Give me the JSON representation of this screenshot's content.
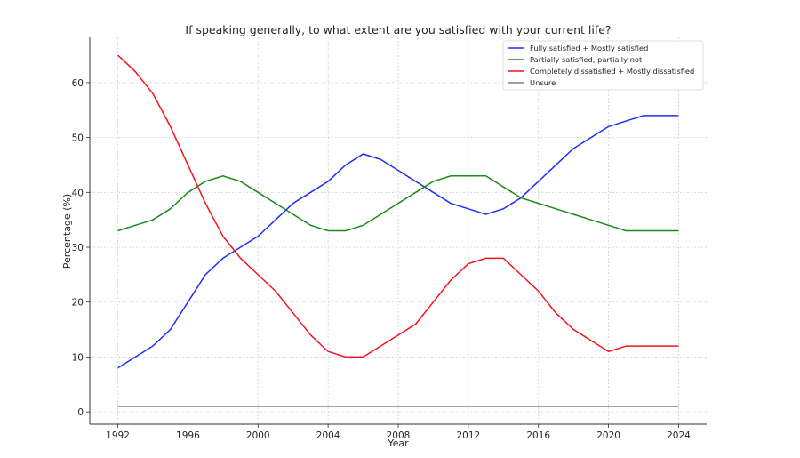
{
  "chart_data": {
    "type": "line",
    "title": "If speaking generally, to what extent are you satisfied with your current life?",
    "xlabel": "Year",
    "ylabel": "Percentage (%)",
    "xlim": [
      1990.4,
      2025.6
    ],
    "ylim": [
      -2.25,
      68.25
    ],
    "xticks": [
      1992,
      1996,
      2000,
      2004,
      2008,
      2012,
      2016,
      2020,
      2024
    ],
    "yticks": [
      0,
      10,
      20,
      30,
      40,
      50,
      60
    ],
    "grid": true,
    "legend_position": "top-right",
    "x": [
      1992,
      1993,
      1994,
      1995,
      1996,
      1997,
      1998,
      1999,
      2000,
      2001,
      2002,
      2003,
      2004,
      2005,
      2006,
      2007,
      2008,
      2009,
      2010,
      2011,
      2012,
      2013,
      2014,
      2015,
      2016,
      2017,
      2018,
      2019,
      2020,
      2021,
      2022,
      2023,
      2024
    ],
    "series": [
      {
        "name": "Fully satisfied + Mostly satisfied",
        "color": "#1f2ff5",
        "values": [
          8,
          10,
          12,
          15,
          20,
          25,
          28,
          30,
          32,
          35,
          38,
          40,
          42,
          45,
          47,
          46,
          44,
          42,
          40,
          38,
          37,
          36,
          37,
          39,
          42,
          45,
          48,
          50,
          52,
          53,
          54,
          54,
          54
        ]
      },
      {
        "name": "Partially satisfied, partially not",
        "color": "#1a8a1a",
        "values": [
          33,
          34,
          35,
          37,
          40,
          42,
          43,
          42,
          40,
          38,
          36,
          34,
          33,
          33,
          34,
          36,
          38,
          40,
          42,
          43,
          43,
          43,
          41,
          39,
          38,
          37,
          36,
          35,
          34,
          33,
          33,
          33,
          33
        ]
      },
      {
        "name": "Completely dissatisfied + Mostly dissatisfied",
        "color": "#f5141e",
        "values": [
          65,
          62,
          58,
          52,
          45,
          38,
          32,
          28,
          25,
          22,
          18,
          14,
          11,
          10,
          10,
          12,
          14,
          16,
          20,
          24,
          27,
          28,
          28,
          25,
          22,
          18,
          15,
          13,
          11,
          12,
          12,
          12,
          12
        ]
      },
      {
        "name": "Unsure",
        "color": "#808080",
        "values": [
          1,
          1,
          1,
          1,
          1,
          1,
          1,
          1,
          1,
          1,
          1,
          1,
          1,
          1,
          1,
          1,
          1,
          1,
          1,
          1,
          1,
          1,
          1,
          1,
          1,
          1,
          1,
          1,
          1,
          1,
          1,
          1,
          1
        ]
      }
    ]
  }
}
